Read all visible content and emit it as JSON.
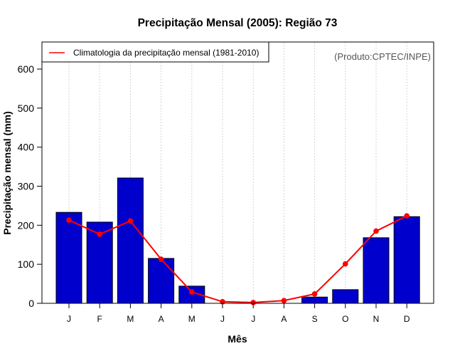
{
  "chart_data": {
    "type": "bar",
    "title": "Precipitação Mensal (2005): Região 73",
    "xlabel": "Mês",
    "ylabel": "Precipitação mensal (mm)",
    "ylim": [
      0,
      600
    ],
    "yticks": [
      0,
      100,
      200,
      300,
      400,
      500,
      600
    ],
    "grid": "vertical dotted",
    "categories": [
      "J",
      "F",
      "M",
      "A",
      "M",
      "J",
      "J",
      "A",
      "S",
      "O",
      "N",
      "D"
    ],
    "series": [
      {
        "name": "Precipitação mensal 2005",
        "type": "bar",
        "color": "#0000cc",
        "values": [
          233,
          208,
          321,
          115,
          44,
          0,
          0,
          0,
          16,
          35,
          168,
          222
        ]
      },
      {
        "name": "Climatologia da precipitação mensal (1981-2010)",
        "type": "line",
        "color": "#ff0000",
        "values": [
          213,
          177,
          211,
          113,
          29,
          4,
          2,
          7,
          24,
          101,
          185,
          224
        ]
      }
    ],
    "legend": {
      "placement": "top-left",
      "entries": [
        "Climatologia da precipitação mensal (1981-2010)"
      ]
    },
    "annotation": "(Produto:CPTEC/INPE)"
  }
}
